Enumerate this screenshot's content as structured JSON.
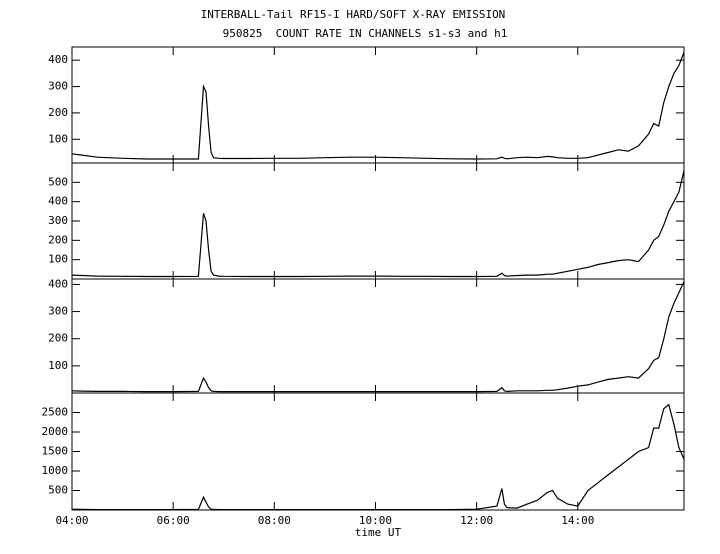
{
  "chart_data": [
    {
      "type": "line",
      "title": "INTERBALL-Tail RF15-I HARD/SOFT X-RAY EMISSION",
      "subtitle": "950825  COUNT RATE IN CHANNELS s1-s3 and h1",
      "x": [
        4.0,
        4.2,
        4.5,
        5.0,
        5.5,
        6.0,
        6.5,
        6.6,
        6.65,
        6.7,
        6.75,
        6.8,
        6.9,
        7.0,
        7.5,
        8.0,
        8.5,
        9.0,
        9.5,
        10.0,
        10.5,
        11.0,
        11.5,
        12.0,
        12.4,
        12.5,
        12.55,
        12.6,
        12.8,
        13.0,
        13.2,
        13.4,
        13.5,
        13.6,
        13.8,
        14.0,
        14.2,
        14.4,
        14.6,
        14.8,
        15.0,
        15.2,
        15.4,
        15.5,
        15.6,
        15.7,
        15.8,
        15.9,
        16.0,
        16.1
      ],
      "series": [
        {
          "color": "#000000",
          "values": [
            45,
            40,
            32,
            28,
            25,
            25,
            25,
            300,
            280,
            150,
            50,
            30,
            28,
            27,
            27,
            28,
            28,
            30,
            32,
            32,
            30,
            28,
            26,
            25,
            26,
            32,
            28,
            26,
            30,
            32,
            30,
            35,
            33,
            30,
            28,
            28,
            30,
            40,
            50,
            60,
            55,
            75,
            120,
            160,
            150,
            240,
            300,
            350,
            380,
            430
          ]
        }
      ],
      "ylim": [
        10,
        450
      ],
      "yticks": [
        100,
        200,
        300,
        400
      ]
    },
    {
      "type": "line",
      "x": [
        4.0,
        4.2,
        4.5,
        5.0,
        5.5,
        6.0,
        6.5,
        6.6,
        6.65,
        6.7,
        6.75,
        6.8,
        6.9,
        7.0,
        7.5,
        8.0,
        8.5,
        9.0,
        9.5,
        10.0,
        10.5,
        11.0,
        11.5,
        12.0,
        12.4,
        12.5,
        12.55,
        12.6,
        12.8,
        13.0,
        13.2,
        13.4,
        13.5,
        13.6,
        13.8,
        14.0,
        14.2,
        14.4,
        14.6,
        14.8,
        15.0,
        15.2,
        15.4,
        15.5,
        15.6,
        15.7,
        15.8,
        15.9,
        16.0,
        16.1
      ],
      "series": [
        {
          "color": "#000000",
          "values": [
            20,
            18,
            15,
            14,
            13,
            13,
            14,
            340,
            300,
            150,
            40,
            20,
            15,
            14,
            13,
            13,
            13,
            14,
            15,
            15,
            14,
            14,
            13,
            13,
            14,
            30,
            18,
            15,
            18,
            20,
            20,
            25,
            25,
            30,
            40,
            50,
            60,
            75,
            85,
            95,
            100,
            90,
            150,
            200,
            220,
            280,
            350,
            400,
            450,
            560
          ]
        }
      ],
      "ylim": [
        0,
        600
      ],
      "yticks": [
        100,
        200,
        300,
        400,
        500
      ]
    },
    {
      "type": "line",
      "x": [
        4.0,
        4.2,
        4.5,
        5.0,
        5.5,
        6.0,
        6.5,
        6.6,
        6.65,
        6.7,
        6.75,
        6.8,
        6.9,
        7.0,
        7.5,
        8.0,
        8.5,
        9.0,
        9.5,
        10.0,
        10.5,
        11.0,
        11.5,
        12.0,
        12.4,
        12.5,
        12.55,
        12.6,
        12.8,
        13.0,
        13.2,
        13.4,
        13.5,
        13.6,
        13.8,
        14.0,
        14.2,
        14.4,
        14.6,
        14.8,
        15.0,
        15.2,
        15.4,
        15.5,
        15.6,
        15.7,
        15.8,
        15.9,
        16.0,
        16.1
      ],
      "series": [
        {
          "color": "#000000",
          "values": [
            8,
            7,
            6,
            6,
            5,
            5,
            6,
            55,
            40,
            20,
            8,
            6,
            5,
            5,
            5,
            5,
            5,
            5,
            5,
            5,
            5,
            5,
            5,
            5,
            6,
            20,
            8,
            6,
            8,
            8,
            8,
            10,
            10,
            12,
            18,
            25,
            30,
            40,
            50,
            55,
            60,
            55,
            90,
            120,
            130,
            200,
            280,
            330,
            370,
            410
          ]
        }
      ],
      "ylim": [
        0,
        420
      ],
      "yticks": [
        100,
        200,
        300,
        400
      ]
    },
    {
      "type": "line",
      "xlabel": "time UT",
      "x": [
        4.0,
        4.2,
        4.5,
        5.0,
        5.5,
        6.0,
        6.5,
        6.6,
        6.65,
        6.7,
        6.75,
        6.8,
        6.9,
        7.0,
        7.5,
        8.0,
        8.5,
        9.0,
        9.5,
        10.0,
        10.5,
        11.0,
        11.5,
        12.0,
        12.4,
        12.5,
        12.55,
        12.6,
        12.8,
        13.0,
        13.2,
        13.4,
        13.5,
        13.6,
        13.8,
        14.0,
        14.2,
        14.4,
        14.6,
        14.8,
        15.0,
        15.2,
        15.4,
        15.5,
        15.6,
        15.7,
        15.8,
        15.9,
        16.0,
        16.1
      ],
      "series": [
        {
          "color": "#000000",
          "values": [
            20,
            15,
            10,
            10,
            10,
            10,
            15,
            330,
            200,
            80,
            20,
            15,
            10,
            10,
            10,
            10,
            10,
            10,
            10,
            10,
            10,
            10,
            10,
            20,
            100,
            550,
            150,
            60,
            50,
            150,
            250,
            450,
            500,
            300,
            150,
            100,
            500,
            700,
            900,
            1100,
            1300,
            1500,
            1600,
            2100,
            2100,
            2600,
            2700,
            2200,
            1600,
            1300
          ]
        }
      ],
      "ylim": [
        0,
        3000
      ],
      "yticks": [
        500,
        1000,
        1500,
        2000,
        2500
      ],
      "xlim": [
        4,
        16.1
      ],
      "xticks": [
        {
          "value": 4,
          "label": "04:00"
        },
        {
          "value": 6,
          "label": "06:00"
        },
        {
          "value": 8,
          "label": "08:00"
        },
        {
          "value": 10,
          "label": "10:00"
        },
        {
          "value": 12,
          "label": "12:00"
        },
        {
          "value": 14,
          "label": "14:00"
        }
      ]
    }
  ]
}
